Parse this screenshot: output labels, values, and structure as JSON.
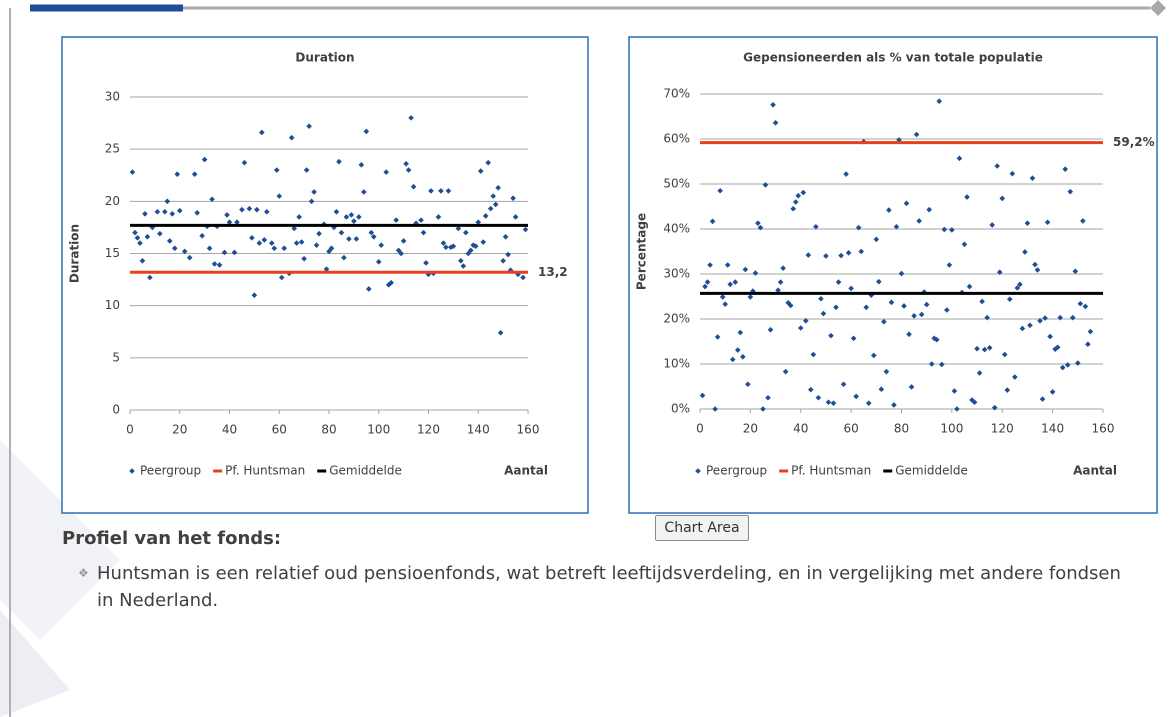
{
  "chart_data": [
    {
      "type": "scatter",
      "title": "Duration",
      "y_label": "Duration",
      "x_label": "Aantal",
      "xlim": [
        0,
        160
      ],
      "xticks": [
        0,
        20,
        40,
        60,
        80,
        100,
        120,
        140,
        160
      ],
      "ylim": [
        0,
        30
      ],
      "yticks": [
        0,
        5,
        10,
        15,
        20,
        25,
        30
      ],
      "grid": true,
      "series": [
        {
          "name": "Peergroup",
          "color": "#1f4e96",
          "kind": "points",
          "x": [
            1,
            2,
            3,
            4,
            5,
            6,
            7,
            8,
            9,
            11,
            12,
            14,
            15,
            16,
            17,
            18,
            19,
            20,
            22,
            24,
            26,
            27,
            29,
            30,
            31,
            32,
            33,
            34,
            35,
            36,
            38,
            39,
            40,
            42,
            43,
            45,
            46,
            48,
            49,
            50,
            51,
            52,
            53,
            54,
            55,
            57,
            58,
            59,
            60,
            61,
            62,
            64,
            65,
            66,
            67,
            68,
            69,
            70,
            71,
            72,
            73,
            74,
            75,
            76,
            78,
            79,
            80,
            81,
            82,
            83,
            84,
            85,
            86,
            87,
            88,
            89,
            90,
            91,
            92,
            93,
            94,
            95,
            96,
            97,
            98,
            100,
            101,
            103,
            104,
            105,
            107,
            108,
            109,
            110,
            111,
            112,
            113,
            114,
            115,
            117,
            118,
            119,
            120,
            121,
            122,
            124,
            125,
            126,
            127,
            128,
            129,
            130,
            132,
            133,
            134,
            135,
            136,
            137,
            138,
            139,
            140,
            141,
            142,
            143,
            144,
            145,
            146,
            147,
            148,
            149,
            150,
            151,
            152,
            153,
            154,
            155,
            156,
            158,
            159
          ],
          "values": [
            22.8,
            17,
            16.5,
            16,
            14.3,
            18.8,
            16.6,
            12.7,
            17.5,
            19,
            16.9,
            19,
            20,
            16.2,
            18.8,
            15.5,
            22.6,
            19.1,
            15.2,
            14.6,
            22.6,
            18.9,
            16.7,
            24,
            17.6,
            15.5,
            20.2,
            14,
            17.6,
            13.9,
            15.1,
            18.7,
            18,
            15.1,
            18,
            19.2,
            23.7,
            19.3,
            16.5,
            11,
            19.2,
            16,
            26.6,
            16.3,
            19,
            16,
            15.5,
            23,
            20.5,
            12.7,
            15.5,
            13.1,
            26.1,
            17.4,
            16,
            18.5,
            16.1,
            14.5,
            23,
            27.2,
            20,
            20.9,
            15.8,
            16.9,
            17.8,
            13.5,
            15.2,
            15.5,
            17.5,
            19,
            23.8,
            17,
            14.6,
            18.5,
            16.4,
            18.7,
            18.1,
            16.4,
            18.5,
            23.5,
            20.9,
            26.7,
            11.6,
            17,
            16.6,
            14.2,
            15.8,
            22.8,
            12,
            12.2,
            18.2,
            15.3,
            15,
            16.2,
            23.6,
            23,
            28,
            21.4,
            17.9,
            18.2,
            17,
            14.1,
            13,
            21,
            13.1,
            18.5,
            21,
            16,
            15.6,
            21,
            15.6,
            15.7,
            17.4,
            14.3,
            13.8,
            17,
            15,
            15.3,
            15.8,
            15.7,
            18,
            22.9,
            16.1,
            18.6,
            23.7,
            19.3,
            20.5,
            19.7,
            21.3,
            7.4,
            14.3,
            16.6,
            14.9,
            13.4,
            20.3,
            18.5,
            13,
            12.7,
            17.3
          ]
        },
        {
          "name": "Pf. Huntsman",
          "color": "#e8401c",
          "kind": "hline",
          "values": [
            13.2
          ],
          "value_labels": [
            "13,2"
          ]
        },
        {
          "name": "Gemiddelde",
          "color": "#000000",
          "kind": "hline",
          "values": [
            17.7
          ]
        }
      ]
    },
    {
      "type": "scatter",
      "title": "Gepensioneerden als % van totale populatie",
      "y_label": "Percentage",
      "x_label": "Aantal",
      "xlim": [
        0,
        160
      ],
      "xticks": [
        0,
        20,
        40,
        60,
        80,
        100,
        120,
        140,
        160
      ],
      "ylim": [
        0,
        70
      ],
      "yticks": [
        {
          "value": 0,
          "label": "0%"
        },
        {
          "value": 10,
          "label": "10%"
        },
        {
          "value": 20,
          "label": "20%"
        },
        {
          "value": 30,
          "label": "30%"
        },
        {
          "value": 40,
          "label": "40%"
        },
        {
          "value": 50,
          "label": "50%"
        },
        {
          "value": 60,
          "label": "60%"
        },
        {
          "value": 70,
          "label": "70%"
        }
      ],
      "grid": true,
      "series": [
        {
          "name": "Peergroup",
          "color": "#1f4e96",
          "kind": "points",
          "x": [
            1,
            2,
            3,
            4,
            5,
            6,
            7,
            8,
            9,
            10,
            11,
            12,
            13,
            14,
            15,
            16,
            17,
            18,
            19,
            20,
            21,
            22,
            23,
            24,
            25,
            26,
            27,
            28,
            29,
            30,
            31,
            32,
            33,
            34,
            35,
            36,
            37,
            38,
            39,
            40,
            41,
            42,
            43,
            44,
            45,
            46,
            47,
            48,
            49,
            50,
            51,
            52,
            53,
            54,
            55,
            56,
            57,
            58,
            59,
            60,
            61,
            62,
            63,
            64,
            65,
            66,
            67,
            68,
            69,
            70,
            71,
            72,
            73,
            74,
            75,
            76,
            77,
            78,
            79,
            80,
            81,
            82,
            83,
            84,
            85,
            86,
            87,
            88,
            89,
            90,
            91,
            92,
            93,
            94,
            95,
            96,
            97,
            98,
            99,
            100,
            101,
            102,
            103,
            104,
            105,
            106,
            107,
            108,
            109,
            110,
            111,
            112,
            113,
            114,
            115,
            116,
            117,
            118,
            119,
            120,
            121,
            122,
            123,
            124,
            125,
            126,
            127,
            128,
            129,
            130,
            131,
            132,
            133,
            134,
            135,
            136,
            137,
            138,
            139,
            140,
            141,
            142,
            143,
            144,
            145,
            146,
            147,
            148,
            149,
            150,
            151,
            152,
            153,
            154,
            155
          ],
          "values": [
            3,
            27.2,
            28.2,
            32,
            41.7,
            0,
            16,
            48.5,
            24.9,
            23.3,
            32,
            27.7,
            11,
            28.2,
            13.1,
            17,
            11.6,
            31,
            5.5,
            24.9,
            26.2,
            30.2,
            41.3,
            40.3,
            0,
            49.8,
            2.5,
            17.6,
            67.6,
            63.6,
            26.4,
            28.2,
            31.3,
            8.3,
            23.6,
            23,
            44.5,
            46,
            47.4,
            18,
            48.1,
            19.6,
            34.2,
            4.3,
            12.1,
            40.5,
            2.5,
            24.5,
            21.2,
            34,
            1.5,
            16.3,
            1.3,
            22.6,
            28.2,
            34.1,
            5.5,
            52.2,
            34.7,
            26.8,
            15.7,
            2.8,
            40.3,
            35,
            59.4,
            22.6,
            1.3,
            25.3,
            11.9,
            37.7,
            28.3,
            4.4,
            19.4,
            8.3,
            44.2,
            23.7,
            0.9,
            40.5,
            59.8,
            30.1,
            22.9,
            45.7,
            16.6,
            4.9,
            20.7,
            61,
            41.8,
            21,
            26,
            23.2,
            44.3,
            10,
            15.7,
            15.4,
            68.4,
            9.9,
            39.9,
            22,
            32,
            39.8,
            4,
            0,
            55.7,
            25.9,
            36.6,
            47.1,
            27.2,
            2,
            1.5,
            13.4,
            8,
            23.9,
            13.2,
            20.3,
            13.6,
            40.9,
            0.3,
            54,
            30.4,
            46.8,
            12.1,
            4.2,
            24.4,
            52.3,
            7.1,
            26.9,
            27.7,
            17.9,
            34.9,
            41.3,
            18.6,
            51.3,
            32.1,
            30.9,
            19.6,
            2.2,
            20.2,
            41.5,
            16.1,
            3.8,
            13.3,
            13.7,
            20.3,
            9.2,
            53.3,
            9.8,
            48.3,
            20.3,
            30.6,
            10.2,
            23.4,
            41.8,
            22.8,
            14.4,
            17.2
          ]
        },
        {
          "name": "Pf. Huntsman",
          "color": "#e8401c",
          "kind": "hline",
          "values": [
            59.2
          ],
          "value_labels": [
            "59,2%"
          ]
        },
        {
          "name": "Gemiddelde",
          "color": "#000000",
          "kind": "hline",
          "values": [
            25.7
          ]
        }
      ]
    }
  ],
  "tooltip": "Chart Area",
  "section": {
    "heading": "Profiel van het fonds:",
    "bullets": [
      "Huntsman is een relatief oud pensioenfonds, wat betreft leeftijdsverdeling, en in vergelijking met andere fondsen in Nederland."
    ]
  }
}
